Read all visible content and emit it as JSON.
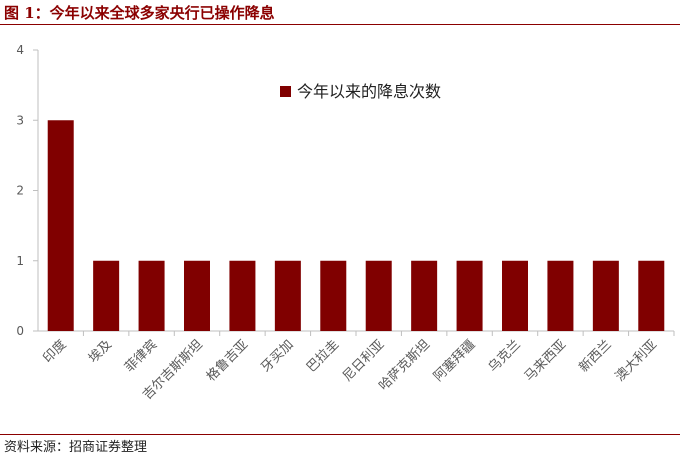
{
  "figure": {
    "title": "图 1：今年以来全球多家央行已操作降息",
    "source": "资料来源：招商证券整理"
  },
  "colors": {
    "bar": "#800000",
    "accent": "#8b0000",
    "axis": "#bfbfbf"
  },
  "chart_data": {
    "type": "bar",
    "categories": [
      "印度",
      "埃及",
      "菲律宾",
      "吉尔吉斯斯坦",
      "格鲁吉亚",
      "牙买加",
      "巴拉圭",
      "尼日利亚",
      "哈萨克斯坦",
      "阿塞拜疆",
      "乌克兰",
      "马来西亚",
      "新西兰",
      "澳大利亚"
    ],
    "series": [
      {
        "name": "今年以来的降息次数",
        "values": [
          3,
          1,
          1,
          1,
          1,
          1,
          1,
          1,
          1,
          1,
          1,
          1,
          1,
          1
        ]
      }
    ],
    "ylim": [
      0,
      4
    ],
    "yticks": [
      "0",
      "1",
      "2",
      "3",
      "4"
    ],
    "grid": false,
    "legend": "top-center"
  }
}
